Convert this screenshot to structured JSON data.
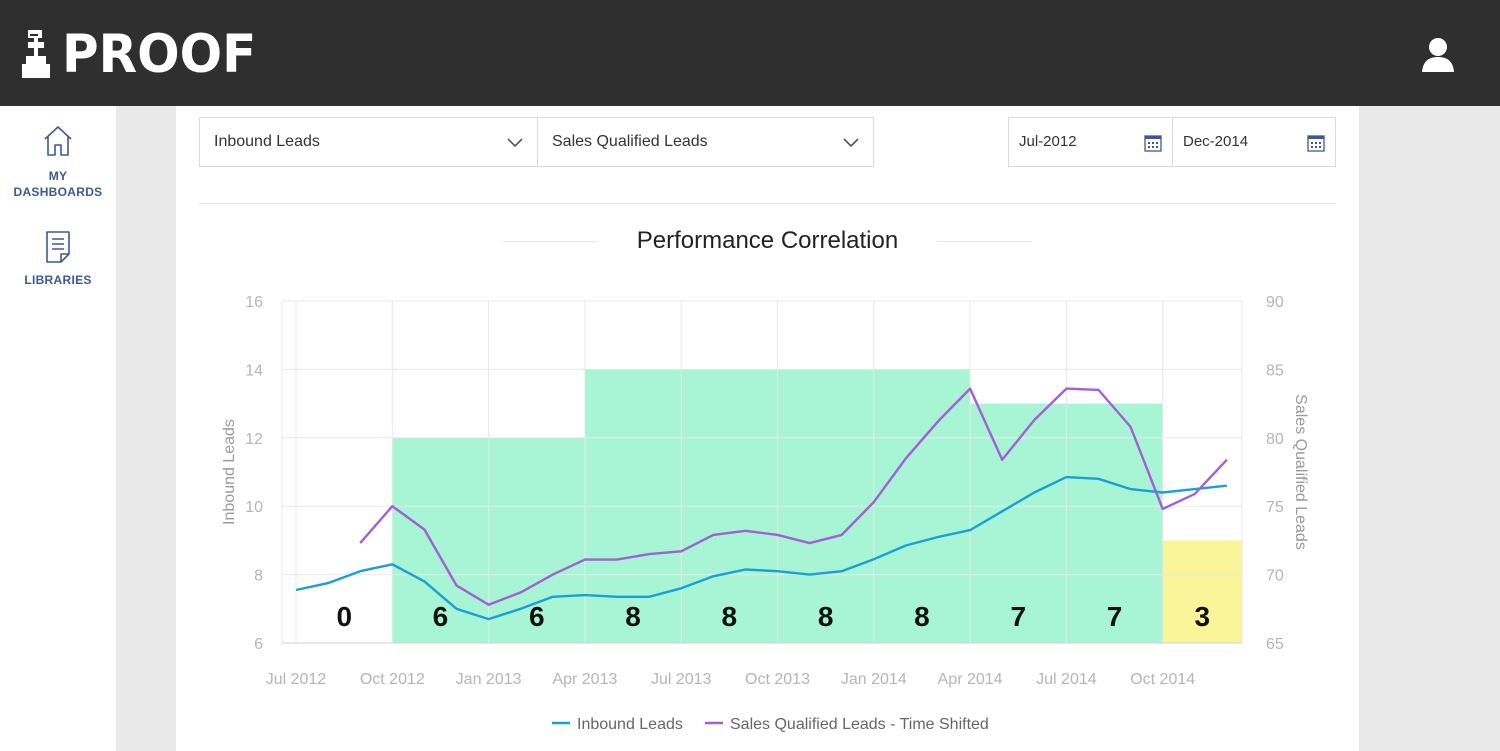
{
  "header": {
    "logo_text": "PROOF",
    "logo_icon": "chess-pawn-icon",
    "user_icon": "user-icon"
  },
  "sidebar": {
    "items": [
      {
        "label_line1": "MY",
        "label_line2": "DASHBOARDS",
        "icon": "home-icon"
      },
      {
        "label_line1": "LIBRARIES",
        "label_line2": "",
        "icon": "document-icon"
      }
    ]
  },
  "filters": {
    "metric_a": "Inbound Leads",
    "metric_b": "Sales Qualified Leads",
    "start_date": "Jul-2012",
    "end_date": "Dec-2014"
  },
  "colors": {
    "line_primary": "#1a9fd6",
    "line_secondary": "#a45ed6",
    "band_green": "#a8f5d6",
    "band_yellow": "#fbf59a"
  },
  "chart_data": {
    "type": "line",
    "title": "Performance Correlation",
    "ylabel": "Inbound Leads",
    "y2label": "Sales Qualified Leads",
    "ylim": [
      6,
      16
    ],
    "y2lim": [
      65,
      90
    ],
    "yticks": [
      6,
      8,
      10,
      12,
      14,
      16
    ],
    "y2ticks": [
      65,
      70,
      75,
      80,
      85,
      90
    ],
    "x_tick_labels": [
      "Jul 2012",
      "Oct 2012",
      "Jan 2013",
      "Apr 2013",
      "Jul 2013",
      "Oct 2013",
      "Jan 2014",
      "Apr 2014",
      "Jul 2014",
      "Oct 2014"
    ],
    "x": [
      "2012-07",
      "2012-08",
      "2012-09",
      "2012-10",
      "2012-11",
      "2012-12",
      "2013-01",
      "2013-02",
      "2013-03",
      "2013-04",
      "2013-05",
      "2013-06",
      "2013-07",
      "2013-08",
      "2013-09",
      "2013-10",
      "2013-11",
      "2013-12",
      "2014-01",
      "2014-02",
      "2014-03",
      "2014-04",
      "2014-05",
      "2014-06",
      "2014-07",
      "2014-08",
      "2014-09",
      "2014-10",
      "2014-11",
      "2014-12"
    ],
    "series": [
      {
        "name": "Inbound Leads",
        "axis": "left",
        "values": [
          7.55,
          7.75,
          8.1,
          8.3,
          7.8,
          7.0,
          6.7,
          7.0,
          7.35,
          7.4,
          7.35,
          7.35,
          7.6,
          7.95,
          8.15,
          8.1,
          8.0,
          8.1,
          8.45,
          8.85,
          9.1,
          9.3,
          9.85,
          10.4,
          10.85,
          10.8,
          10.5,
          10.4,
          10.5,
          10.6
        ]
      },
      {
        "name": "Sales Qualified Leads - Time Shifted",
        "axis": "right",
        "values": [
          null,
          null,
          72.3,
          75.0,
          73.3,
          69.2,
          67.8,
          68.7,
          70.0,
          71.1,
          71.1,
          71.5,
          71.7,
          72.9,
          73.2,
          72.9,
          72.3,
          72.9,
          75.3,
          78.5,
          81.2,
          83.6,
          78.4,
          81.3,
          83.6,
          83.5,
          80.8,
          74.8,
          75.9,
          78.4
        ]
      }
    ],
    "bands": [
      {
        "from": "2012-07",
        "to": "2012-10",
        "value": 0,
        "label": "0",
        "color": "green"
      },
      {
        "from": "2012-10",
        "to": "2013-01",
        "value": 12,
        "label": "6",
        "color": "green"
      },
      {
        "from": "2013-01",
        "to": "2013-04",
        "value": 12,
        "label": "6",
        "color": "green"
      },
      {
        "from": "2013-04",
        "to": "2013-07",
        "value": 14,
        "label": "8",
        "color": "green"
      },
      {
        "from": "2013-07",
        "to": "2013-10",
        "value": 14,
        "label": "8",
        "color": "green"
      },
      {
        "from": "2013-10",
        "to": "2014-01",
        "value": 14,
        "label": "8",
        "color": "green"
      },
      {
        "from": "2014-01",
        "to": "2014-04",
        "value": 14,
        "label": "8",
        "color": "green"
      },
      {
        "from": "2014-04",
        "to": "2014-07",
        "value": 13,
        "label": "7",
        "color": "green"
      },
      {
        "from": "2014-07",
        "to": "2014-10",
        "value": 13,
        "label": "7",
        "color": "green"
      },
      {
        "from": "2014-10",
        "to": "2015-01",
        "value": 9,
        "label": "3",
        "color": "yellow"
      }
    ],
    "legend": "bottom-center",
    "grid": true
  }
}
